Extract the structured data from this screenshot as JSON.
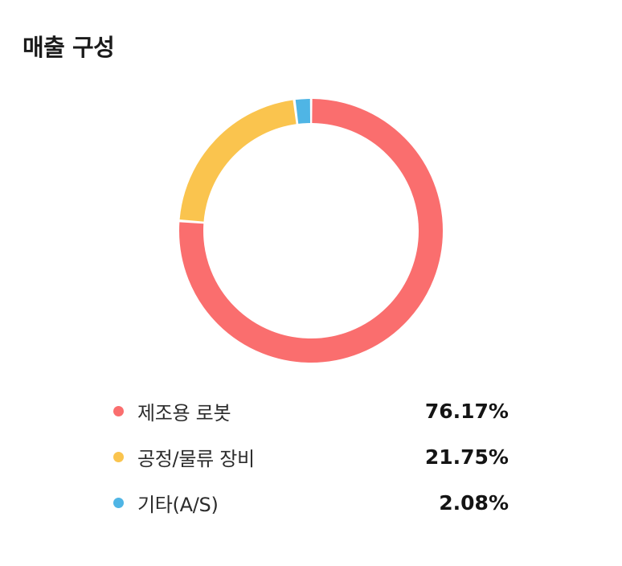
{
  "page": {
    "title": "매출 구성"
  },
  "chart_data": {
    "type": "pie",
    "title": "매출 구성",
    "donut": true,
    "start_angle_deg": 0,
    "direction": "clockwise",
    "legend_position": "bottom",
    "segments": [
      {
        "label": "제조용 로봇",
        "value": 76.17,
        "display": "76.17%",
        "color": "#FA6E6E"
      },
      {
        "label": "공정/물류 장비",
        "value": 21.75,
        "display": "21.75%",
        "color": "#FAC44E"
      },
      {
        "label": "기타(A/S)",
        "value": 2.08,
        "display": "2.08%",
        "color": "#4FB5E5"
      }
    ]
  }
}
